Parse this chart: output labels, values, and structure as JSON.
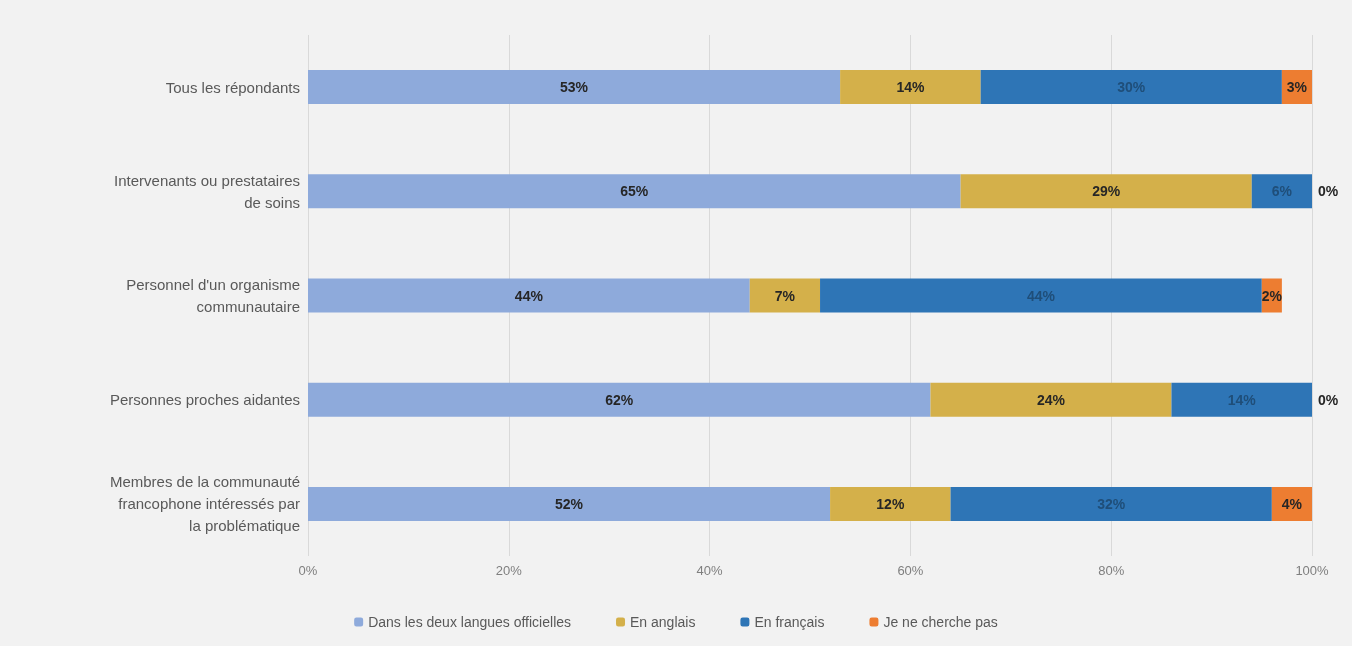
{
  "chart_data": {
    "type": "bar",
    "orientation": "horizontal",
    "stacked": true,
    "categories": [
      "Tous les répondants",
      "Intervenants ou prestataires\nde soins",
      "Personnel d'un organisme\ncommunautaire",
      "Personnes proches aidantes",
      "Membres de la communauté\nfrancophone intéressés par\nla problématique"
    ],
    "series": [
      {
        "name": "Dans les deux langues officielles",
        "color": "#8eaadb",
        "values": [
          53,
          65,
          44,
          62,
          52
        ],
        "value_labels": [
          "53%",
          "65%",
          "44%",
          "62%",
          "52%"
        ]
      },
      {
        "name": "En anglais",
        "color": "#d4b04a",
        "values": [
          14,
          29,
          7,
          24,
          12
        ],
        "value_labels": [
          "14%",
          "29%",
          "7%",
          "24%",
          "12%"
        ]
      },
      {
        "name": "En français",
        "color": "#2e75b6",
        "values": [
          30,
          6,
          44,
          14,
          32
        ],
        "value_labels": [
          "30%",
          "6%",
          "44%",
          "14%",
          "32%"
        ]
      },
      {
        "name": "Je ne cherche pas",
        "color": "#ed7d31",
        "values": [
          3,
          0,
          2,
          0,
          4
        ],
        "value_labels": [
          "3%",
          "0%",
          "2%",
          "0%",
          "4%"
        ]
      }
    ],
    "xlim": [
      0,
      100
    ],
    "xticks": [
      {
        "value": 0,
        "label": "0%"
      },
      {
        "value": 20,
        "label": "20%"
      },
      {
        "value": 40,
        "label": "40%"
      },
      {
        "value": 60,
        "label": "60%"
      },
      {
        "value": 80,
        "label": "80%"
      },
      {
        "value": 100,
        "label": "100%"
      }
    ],
    "grid": "x",
    "legend": "bottom"
  }
}
